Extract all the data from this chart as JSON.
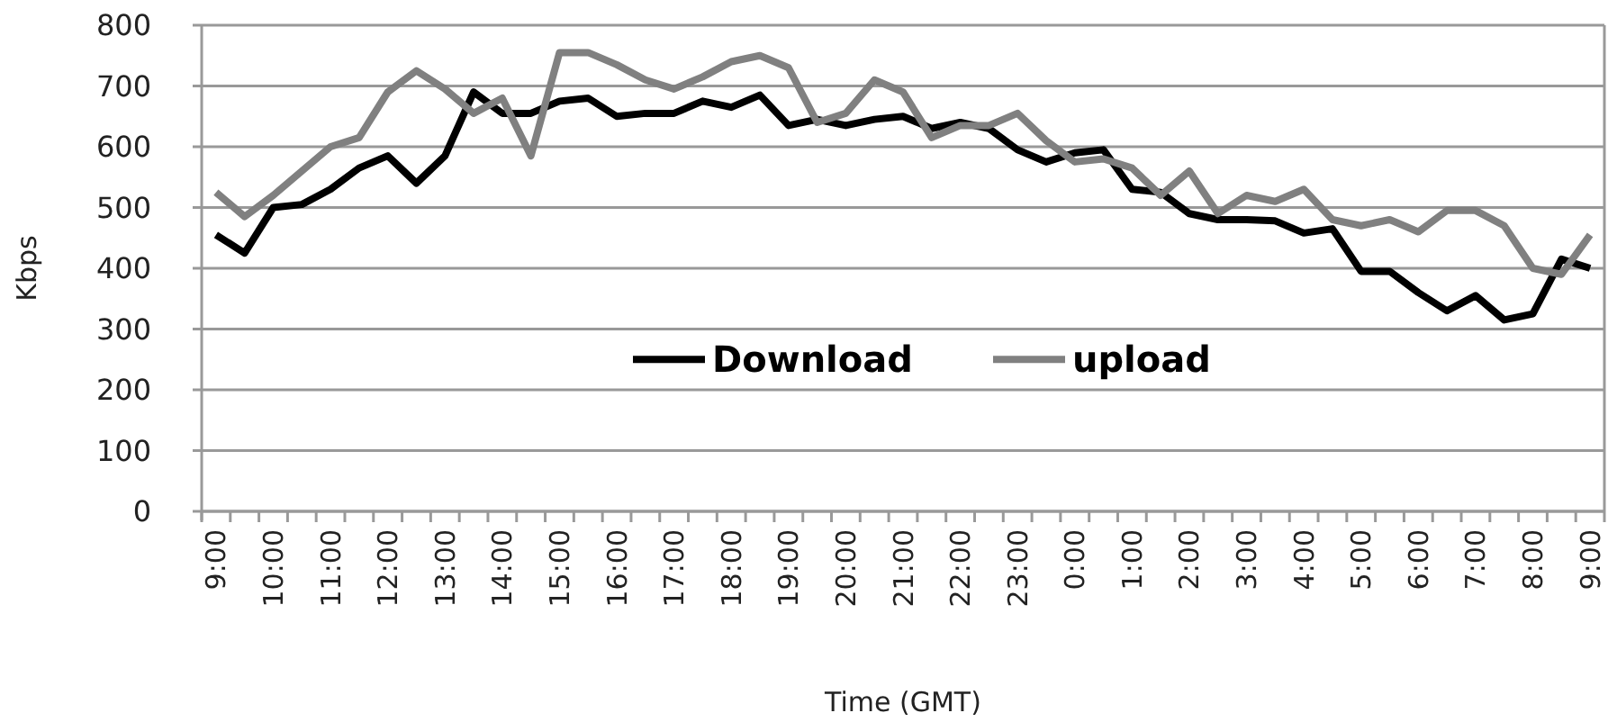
{
  "chart_data": {
    "type": "line",
    "xlabel": "Time (GMT)",
    "ylabel": "Kbps",
    "categories": [
      "9:00",
      null,
      "10:00",
      null,
      "11:00",
      null,
      "12:00",
      null,
      "13:00",
      null,
      "14:00",
      null,
      "15:00",
      null,
      "16:00",
      null,
      "17:00",
      null,
      "18:00",
      null,
      "19:00",
      null,
      "20:00",
      null,
      "21:00",
      null,
      "22:00",
      null,
      "23:00",
      null,
      "0:00",
      null,
      "1:00",
      null,
      "2:00",
      null,
      "3:00",
      null,
      "4:00",
      null,
      "5:00",
      null,
      "6:00",
      null,
      "7:00",
      null,
      "8:00",
      null,
      "9:00"
    ],
    "series": [
      {
        "name": "Download",
        "color": "#000000",
        "values": [
          455,
          425,
          500,
          505,
          530,
          565,
          585,
          540,
          585,
          690,
          655,
          655,
          675,
          680,
          650,
          655,
          655,
          675,
          665,
          685,
          635,
          645,
          635,
          645,
          650,
          630,
          640,
          630,
          595,
          575,
          590,
          595,
          530,
          525,
          490,
          480,
          480,
          478,
          458,
          465,
          395,
          395,
          360,
          330,
          355,
          315,
          325,
          415,
          400
        ]
      },
      {
        "name": "upload",
        "color": "#808080",
        "values": [
          525,
          485,
          520,
          560,
          600,
          615,
          690,
          725,
          695,
          655,
          680,
          585,
          755,
          755,
          735,
          710,
          695,
          715,
          740,
          750,
          730,
          640,
          655,
          710,
          690,
          615,
          635,
          635,
          655,
          610,
          575,
          580,
          565,
          520,
          560,
          490,
          520,
          510,
          530,
          480,
          470,
          480,
          460,
          495,
          495,
          470,
          400,
          390,
          455
        ]
      }
    ],
    "ylim": [
      0,
      800
    ],
    "yticks": [
      0,
      100,
      200,
      300,
      400,
      500,
      600,
      700,
      800
    ],
    "grid": "y",
    "legend": "center",
    "marker": "none",
    "line_style": "solid"
  }
}
